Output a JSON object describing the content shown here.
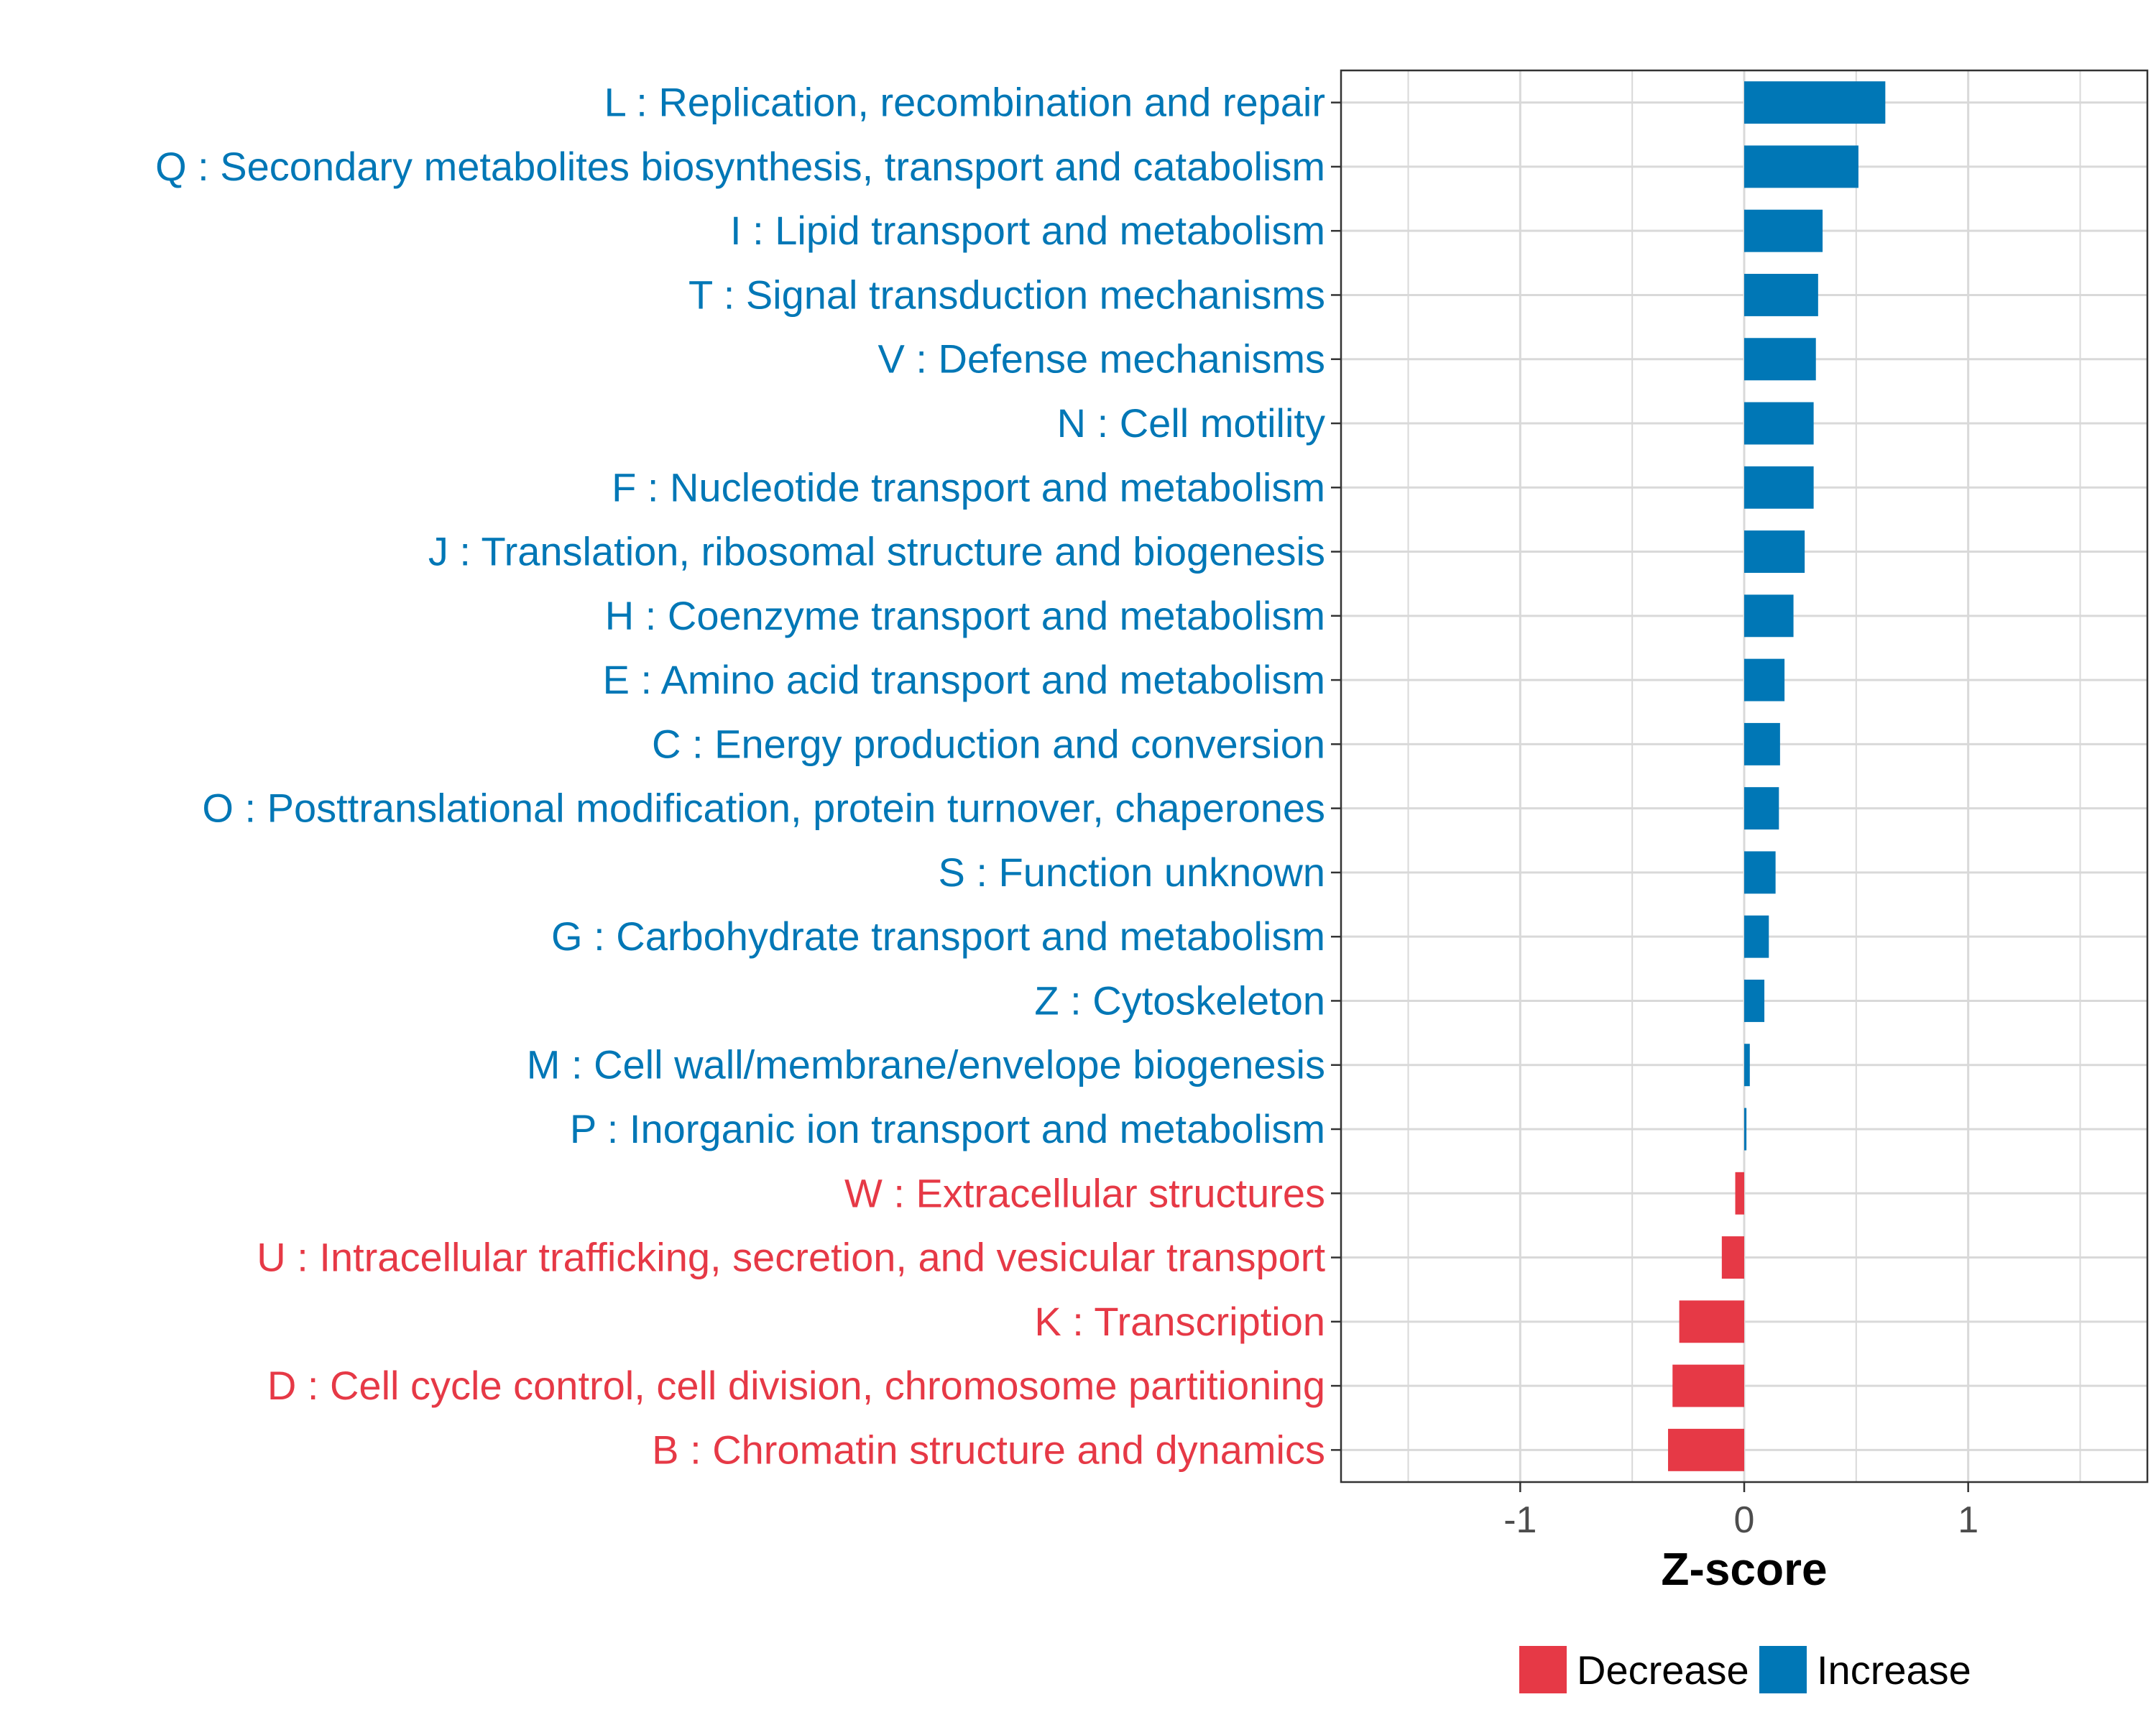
{
  "chart_data": {
    "type": "bar",
    "orientation": "horizontal",
    "title": "",
    "xlabel": "Z-score",
    "ylabel": "",
    "xlim": [
      -1.8,
      1.8
    ],
    "xticks": [
      -1,
      0,
      1
    ],
    "xtick_labels": [
      "-1",
      "0",
      "1"
    ],
    "grid": true,
    "categories": [
      "L : Replication, recombination and repair",
      "Q : Secondary metabolites biosynthesis, transport and catabolism",
      "I : Lipid transport and metabolism",
      "T : Signal transduction mechanisms",
      "V : Defense mechanisms",
      "N : Cell motility",
      "F : Nucleotide transport and metabolism",
      "J : Translation, ribosomal structure and biogenesis",
      "H : Coenzyme transport and metabolism",
      "E : Amino acid transport and metabolism",
      "C : Energy production and conversion",
      "O : Posttranslational modification, protein turnover, chaperones",
      "S : Function unknown",
      "G : Carbohydrate transport and metabolism",
      "Z : Cytoskeleton",
      "M : Cell wall/membrane/envelope biogenesis",
      "P : Inorganic ion transport and metabolism",
      "W : Extracellular structures",
      "U : Intracellular trafficking, secretion, and vesicular transport",
      "K : Transcription",
      "D : Cell cycle control, cell division, chromosome partitioning",
      "B : Chromatin structure and dynamics"
    ],
    "values": [
      0.63,
      0.51,
      0.35,
      0.33,
      0.32,
      0.31,
      0.31,
      0.27,
      0.22,
      0.18,
      0.16,
      0.155,
      0.14,
      0.11,
      0.09,
      0.025,
      0.01,
      -0.04,
      -0.1,
      -0.29,
      -0.32,
      -0.34
    ],
    "groups": [
      "Increase",
      "Increase",
      "Increase",
      "Increase",
      "Increase",
      "Increase",
      "Increase",
      "Increase",
      "Increase",
      "Increase",
      "Increase",
      "Increase",
      "Increase",
      "Increase",
      "Increase",
      "Increase",
      "Increase",
      "Decrease",
      "Decrease",
      "Decrease",
      "Decrease",
      "Decrease"
    ],
    "legend": {
      "position": "bottom",
      "entries": [
        {
          "label": "Decrease",
          "color": "#e63946"
        },
        {
          "label": "Increase",
          "color": "#0077b6"
        }
      ]
    },
    "colors": {
      "Increase": "#0077b6",
      "Decrease": "#e63946"
    }
  }
}
